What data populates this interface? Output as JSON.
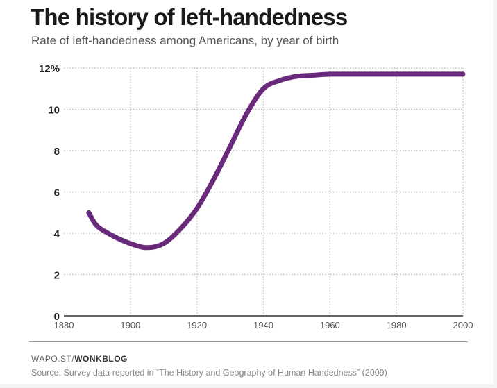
{
  "header": {
    "title": "The history of left-handedness",
    "subtitle": "Rate of left-handedness among Americans, by year of birth"
  },
  "footer": {
    "credit_prefix": "WAPO.ST/",
    "credit_brand": "WONKBLOG",
    "source": "Source: Survey data reported in “The History and Geography of Human Handedness” (2009)"
  },
  "colors": {
    "line": "#6a2a7b",
    "grid": "#b5b5b5",
    "axis": "#333333"
  },
  "chart_data": {
    "type": "line",
    "title": "The history of left-handedness",
    "subtitle": "Rate of left-handedness among Americans, by year of birth",
    "xlabel": "",
    "ylabel": "",
    "xlim": [
      1880,
      2000
    ],
    "ylim": [
      0,
      12
    ],
    "x_ticks": [
      1880,
      1900,
      1920,
      1940,
      1960,
      1980,
      2000
    ],
    "x_tick_labels": [
      "1880",
      "1900",
      "1920",
      "1940",
      "1960",
      "1980",
      "2000"
    ],
    "y_ticks": [
      0,
      2,
      4,
      6,
      8,
      10,
      12
    ],
    "y_tick_labels": [
      "0",
      "2",
      "4",
      "6",
      "8",
      "10",
      "12%"
    ],
    "grid": true,
    "grid_style": "dotted",
    "series": [
      {
        "x": [
          1887.5,
          1890,
          1895,
          1900,
          1905,
          1910,
          1915,
          1920,
          1925,
          1930,
          1935,
          1940,
          1945,
          1950,
          1955,
          1960,
          1970,
          1980,
          1990,
          2000
        ],
        "values": [
          5.0,
          4.35,
          3.85,
          3.5,
          3.3,
          3.5,
          4.2,
          5.2,
          6.6,
          8.2,
          9.8,
          11.0,
          11.4,
          11.6,
          11.65,
          11.7,
          11.7,
          11.7,
          11.7,
          11.7
        ]
      }
    ]
  }
}
